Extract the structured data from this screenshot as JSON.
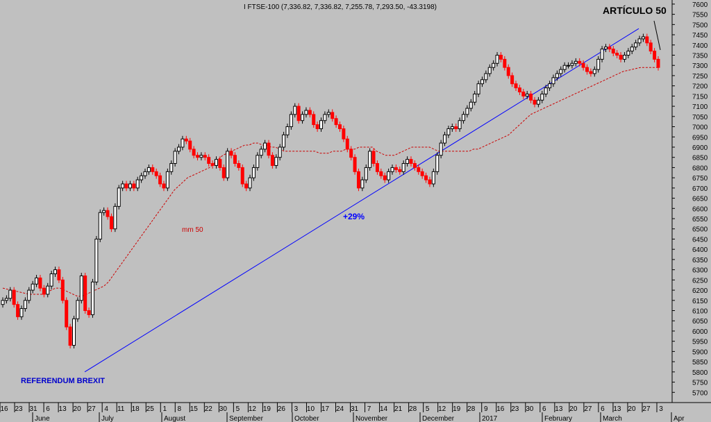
{
  "chart_data": {
    "type": "candlestick",
    "title": "I FTSE-100 (7,336.82, 7,336.82, 7,255.78, 7,293.50, -43.3198)",
    "ylim": [
      5650,
      7620
    ],
    "yticks": [
      5700,
      5750,
      5800,
      5850,
      5900,
      5950,
      6000,
      6050,
      6100,
      6150,
      6200,
      6250,
      6300,
      6350,
      6400,
      6450,
      6500,
      6550,
      6600,
      6650,
      6700,
      6750,
      6800,
      6850,
      6900,
      6950,
      7000,
      7050,
      7100,
      7150,
      7200,
      7250,
      7300,
      7350,
      7400,
      7450,
      7500,
      7550,
      7600
    ],
    "x_ticks": [
      "16",
      "23",
      "31",
      "6",
      "13",
      "20",
      "27",
      "4",
      "11",
      "18",
      "25",
      "1",
      "8",
      "15",
      "22",
      "30",
      "5",
      "12",
      "19",
      "26",
      "3",
      "10",
      "17",
      "24",
      "31",
      "7",
      "14",
      "21",
      "28",
      "5",
      "12",
      "19",
      "28",
      "9",
      "16",
      "23",
      "30",
      "6",
      "13",
      "20",
      "27",
      "6",
      "13",
      "20",
      "27",
      "3"
    ],
    "month_labels": [
      "June",
      "July",
      "August",
      "September",
      "October",
      "November",
      "December",
      "2017",
      "February",
      "March",
      "Apr"
    ],
    "closes": [
      6150,
      6160,
      6200,
      6130,
      6070,
      6110,
      6150,
      6200,
      6230,
      6260,
      6210,
      6180,
      6220,
      6280,
      6300,
      6250,
      6150,
      6020,
      5930,
      6060,
      6150,
      6270,
      6100,
      6080,
      6240,
      6450,
      6580,
      6590,
      6560,
      6500,
      6610,
      6700,
      6720,
      6700,
      6720,
      6700,
      6740,
      6760,
      6780,
      6800,
      6780,
      6760,
      6720,
      6700,
      6780,
      6820,
      6880,
      6900,
      6940,
      6930,
      6890,
      6860,
      6850,
      6860,
      6850,
      6820,
      6810,
      6840,
      6800,
      6750,
      6880,
      6860,
      6820,
      6800,
      6720,
      6700,
      6750,
      6800,
      6860,
      6890,
      6920,
      6860,
      6810,
      6850,
      6900,
      6960,
      7000,
      7060,
      7100,
      7030,
      7060,
      7080,
      7060,
      7010,
      6990,
      7030,
      7060,
      7070,
      7040,
      7010,
      6990,
      6940,
      6890,
      6850,
      6780,
      6700,
      6740,
      6800,
      6880,
      6820,
      6780,
      6760,
      6740,
      6780,
      6800,
      6790,
      6780,
      6820,
      6840,
      6820,
      6800,
      6780,
      6760,
      6740,
      6720,
      6780,
      6860,
      6920,
      6960,
      6990,
      7000,
      6990,
      7030,
      7060,
      7090,
      7120,
      7160,
      7210,
      7230,
      7260,
      7290,
      7310,
      7350,
      7330,
      7290,
      7250,
      7210,
      7190,
      7170,
      7150,
      7160,
      7130,
      7110,
      7130,
      7160,
      7190,
      7210,
      7240,
      7260,
      7280,
      7300,
      7300,
      7310,
      7320,
      7310,
      7290,
      7270,
      7260,
      7280,
      7330,
      7380,
      7390,
      7380,
      7360,
      7350,
      7330,
      7350,
      7370,
      7390,
      7410,
      7430,
      7440,
      7410,
      7370,
      7330,
      7290
    ],
    "ma_label": "mm 50",
    "ma_values": [
      6210,
      6205,
      6200,
      6195,
      6190,
      6185,
      6180,
      6180,
      6180,
      6180,
      6190,
      6200,
      6210,
      6210,
      6200,
      6190,
      6180,
      6170,
      6170,
      6180,
      6190,
      6200,
      6210,
      6220,
      6240,
      6270,
      6300,
      6330,
      6360,
      6390,
      6420,
      6450,
      6480,
      6510,
      6540,
      6570,
      6600,
      6630,
      6660,
      6690,
      6710,
      6730,
      6750,
      6760,
      6770,
      6780,
      6790,
      6800,
      6820,
      6840,
      6860,
      6870,
      6880,
      6890,
      6900,
      6910,
      6910,
      6920,
      6920,
      6910,
      6910,
      6900,
      6900,
      6890,
      6880,
      6880,
      6880,
      6880,
      6880,
      6880,
      6880,
      6880,
      6870,
      6870,
      6870,
      6880,
      6880,
      6880,
      6890,
      6890,
      6890,
      6900,
      6900,
      6900,
      6900,
      6880,
      6870,
      6860,
      6860,
      6860,
      6870,
      6880,
      6890,
      6900,
      6900,
      6900,
      6900,
      6900,
      6890,
      6880,
      6880,
      6880,
      6880,
      6880,
      6880,
      6880,
      6880,
      6890,
      6890,
      6900,
      6910,
      6920,
      6930,
      6940,
      6950,
      6960,
      6980,
      7000,
      7020,
      7040,
      7060,
      7070,
      7080,
      7090,
      7100,
      7110,
      7120,
      7130,
      7140,
      7150,
      7160,
      7170,
      7180,
      7190,
      7200,
      7210,
      7220,
      7230,
      7240,
      7250,
      7260,
      7270,
      7275,
      7280,
      7285,
      7290,
      7290,
      7290,
      7290,
      7290
    ],
    "trendline": {
      "start": {
        "x": "27 June",
        "y": 5800
      },
      "end": {
        "x": "15 March",
        "y": 7480
      }
    },
    "annotations": [
      {
        "text": "REFERENDUM BREXIT",
        "color": "#0000cc"
      },
      {
        "text": "+29%",
        "color": "#0000ff"
      },
      {
        "text": "ARTÍCULO 50",
        "color": "#000000"
      },
      {
        "text": "mm 50",
        "color": "#cc0000"
      }
    ],
    "colors": {
      "background": "#c0c0c0",
      "up": "#000000",
      "down": "#ff0000",
      "trendline": "#0000ff",
      "ma": "#cc0000"
    }
  }
}
